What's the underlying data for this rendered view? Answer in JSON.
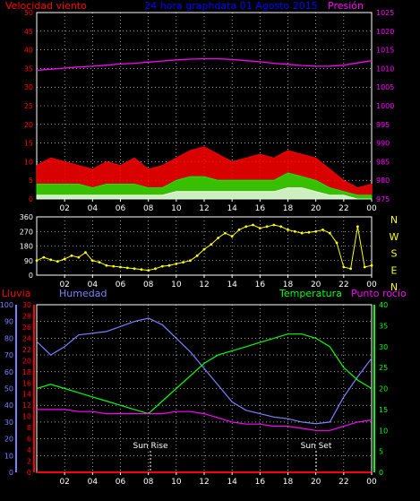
{
  "header": {
    "wind_label": "Velocidad viento",
    "title": "24 hora graphdata 01 Agosto 2015",
    "pressure_label": "Presión"
  },
  "colors": {
    "background": "#000000",
    "axis": "#ffffff",
    "grid": "#ffffff",
    "wind_label": "#ff0000",
    "title": "#0000ff",
    "pressure": "#ff00ff",
    "gust": "#ff0000",
    "wind_avg": "#00ff00",
    "wind_min": "#ffffff",
    "direction": "#ffff00",
    "rain": "#ff0000",
    "humidity": "#8080ff",
    "temperature": "#00ff00",
    "dewpoint": "#ff00ff",
    "rain_axis": "#ff0000",
    "hum_axis": "#8080ff",
    "temp_axis": "#00ff00"
  },
  "chart_data": [
    {
      "type": "line",
      "name": "wind-pressure",
      "x_ticks": [
        "02",
        "04",
        "06",
        "08",
        "10",
        "12",
        "14",
        "16",
        "18",
        "20",
        "22",
        "00"
      ],
      "left_axis": {
        "label": "Velocidad viento",
        "ylim": [
          0,
          50
        ],
        "ticks": [
          0,
          5,
          10,
          15,
          20,
          25,
          30,
          35,
          40,
          45,
          50
        ]
      },
      "right_axis": {
        "label": "Presión",
        "ylim": [
          975,
          1025
        ],
        "ticks": [
          975,
          980,
          985,
          990,
          995,
          1000,
          1005,
          1010,
          1015,
          1020,
          1025
        ]
      },
      "hours": [
        0,
        1,
        2,
        3,
        4,
        5,
        6,
        7,
        8,
        9,
        10,
        11,
        12,
        13,
        14,
        15,
        16,
        17,
        18,
        19,
        20,
        21,
        22,
        23,
        24
      ],
      "series": [
        {
          "axis": "right",
          "values": [
            1009.5,
            1009.8,
            1010.1,
            1010.4,
            1010.6,
            1010.9,
            1011.2,
            1011.4,
            1011.7,
            1012.0,
            1012.3,
            1012.5,
            1012.6,
            1012.6,
            1012.4,
            1012.1,
            1011.8,
            1011.4,
            1011.1,
            1010.8,
            1010.6,
            1010.6,
            1010.9,
            1011.5,
            1012.1
          ]
        },
        {
          "axis": "left",
          "values": [
            9,
            11,
            10,
            9,
            8,
            10,
            9,
            11,
            8,
            9,
            11,
            13,
            14,
            12,
            10,
            11,
            12,
            11,
            13,
            12,
            11,
            8,
            5,
            3,
            4
          ]
        },
        {
          "axis": "left",
          "values": [
            4,
            4,
            4,
            4,
            3,
            4,
            4,
            4,
            3,
            3,
            5,
            6,
            6,
            5,
            5,
            5,
            5,
            5,
            7,
            6,
            5,
            3,
            2,
            1,
            1
          ]
        },
        {
          "axis": "left",
          "values": [
            1,
            1,
            1,
            1,
            1,
            1,
            1,
            1,
            1,
            1,
            2,
            2,
            2,
            2,
            2,
            2,
            2,
            2,
            3,
            3,
            2,
            1,
            1,
            0,
            0
          ]
        }
      ]
    },
    {
      "type": "scatter",
      "name": "wind-direction",
      "x_ticks": [
        "02",
        "04",
        "06",
        "08",
        "10",
        "12",
        "14",
        "16",
        "18",
        "20",
        "22",
        "00"
      ],
      "ylim": [
        0,
        360
      ],
      "y_ticks": [
        0,
        90,
        180,
        270,
        360
      ],
      "right_labels": [
        "N",
        "W",
        "S",
        "E",
        "N"
      ],
      "hours": [
        0,
        0.5,
        1,
        1.5,
        2,
        2.5,
        3,
        3.5,
        4,
        4.5,
        5,
        5.5,
        6,
        6.5,
        7,
        7.5,
        8,
        8.5,
        9,
        9.5,
        10,
        10.5,
        11,
        11.5,
        12,
        12.5,
        13,
        13.5,
        14,
        14.5,
        15,
        15.5,
        16,
        16.5,
        17,
        17.5,
        18,
        18.5,
        19,
        19.5,
        20,
        20.5,
        21,
        21.5,
        22,
        22.5,
        23,
        23.5,
        24
      ],
      "values": [
        90,
        110,
        95,
        85,
        100,
        120,
        110,
        140,
        90,
        80,
        60,
        55,
        50,
        45,
        40,
        35,
        30,
        40,
        55,
        60,
        70,
        80,
        90,
        120,
        160,
        190,
        230,
        260,
        240,
        280,
        300,
        310,
        290,
        300,
        310,
        300,
        280,
        270,
        260,
        265,
        270,
        280,
        260,
        200,
        50,
        40,
        300,
        50,
        60
      ]
    },
    {
      "type": "line",
      "name": "humidity-temperature",
      "x_ticks": [
        "02",
        "04",
        "06",
        "08",
        "10",
        "12",
        "14",
        "16",
        "18",
        "20",
        "22",
        "00"
      ],
      "rain_axis": {
        "label": "Lluvia",
        "ylim": [
          0,
          30
        ],
        "ticks": [
          0,
          2,
          4,
          6,
          8,
          10,
          12,
          14,
          16,
          18,
          20,
          22,
          24,
          26,
          28,
          30
        ]
      },
      "hum_axis": {
        "label": "Humedad",
        "ylim": [
          0,
          100
        ],
        "ticks": [
          0,
          10,
          20,
          30,
          40,
          50,
          60,
          70,
          80,
          90,
          100
        ]
      },
      "temp_axis": {
        "label": "Temperatura",
        "ylim": [
          0,
          40
        ],
        "ticks": [
          0,
          5,
          10,
          15,
          20,
          25,
          30,
          35,
          40
        ]
      },
      "dew_label": "Punto rocío",
      "markers": [
        "Sun Rise",
        "Sun Set"
      ],
      "hours": [
        0,
        1,
        2,
        3,
        4,
        5,
        6,
        7,
        8,
        9,
        10,
        11,
        12,
        13,
        14,
        15,
        16,
        17,
        18,
        19,
        20,
        21,
        22,
        23,
        24
      ],
      "series": [
        {
          "axis": "hum",
          "values": [
            78,
            70,
            75,
            82,
            83,
            84,
            87,
            90,
            92,
            88,
            80,
            72,
            62,
            52,
            42,
            37,
            35,
            33,
            32,
            30,
            29,
            30,
            45,
            57,
            68
          ]
        },
        {
          "axis": "temp",
          "values": [
            20,
            21,
            20,
            19,
            18,
            17,
            16,
            15,
            14,
            17,
            20,
            23,
            26,
            28,
            29,
            30,
            31,
            32,
            33,
            33,
            32,
            30,
            25,
            22,
            20
          ]
        },
        {
          "axis": "temp",
          "values": [
            15,
            15,
            15,
            14.5,
            14.5,
            14,
            14,
            14,
            14,
            14,
            14.5,
            14.5,
            14,
            13,
            12,
            11.5,
            11.5,
            11,
            11,
            10.5,
            10,
            10,
            11,
            12,
            12.5
          ]
        },
        {
          "axis": "rain",
          "values": [
            0,
            0,
            0,
            0,
            0,
            0,
            0,
            0,
            0,
            0,
            0,
            0,
            0,
            0,
            0,
            0,
            0,
            0,
            0,
            0,
            0,
            0,
            0,
            0,
            0
          ]
        }
      ]
    }
  ]
}
